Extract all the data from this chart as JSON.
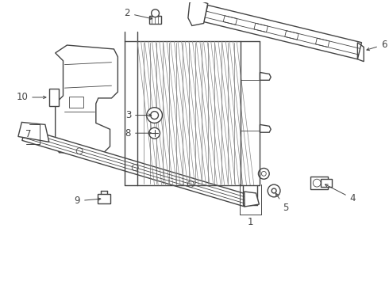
{
  "bg_color": "#ffffff",
  "line_color": "#444444",
  "line_width": 1.0,
  "thin_line": 0.6
}
